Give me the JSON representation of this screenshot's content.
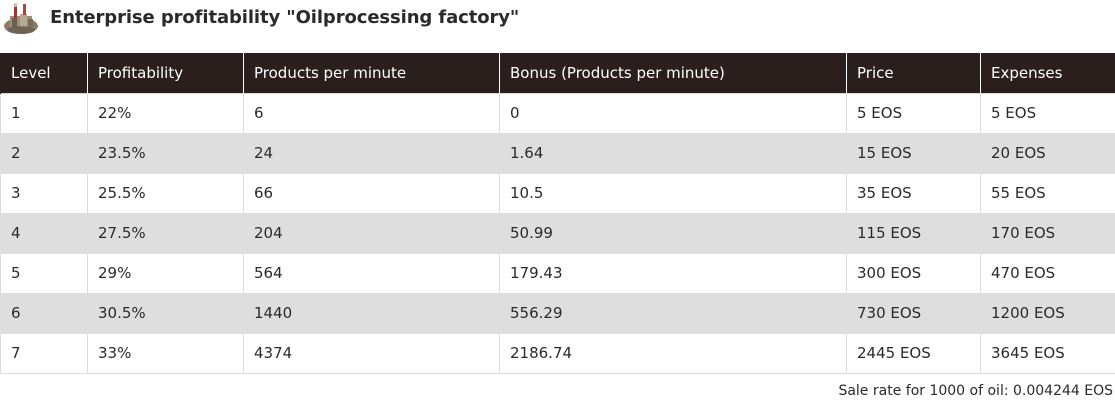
{
  "header": {
    "title": "Enterprise profitability \"Oilprocessing factory\"",
    "icon": "oil-factory-icon"
  },
  "table": {
    "columns": [
      "Level",
      "Profitability",
      "Products per minute",
      "Bonus (Products per minute)",
      "Price",
      "Expenses"
    ],
    "rows": [
      [
        "1",
        "22%",
        "6",
        "0",
        "5 EOS",
        "5 EOS"
      ],
      [
        "2",
        "23.5%",
        "24",
        "1.64",
        "15 EOS",
        "20 EOS"
      ],
      [
        "3",
        "25.5%",
        "66",
        "10.5",
        "35 EOS",
        "55 EOS"
      ],
      [
        "4",
        "27.5%",
        "204",
        "50.99",
        "115 EOS",
        "170 EOS"
      ],
      [
        "5",
        "29%",
        "564",
        "179.43",
        "300 EOS",
        "470 EOS"
      ],
      [
        "6",
        "30.5%",
        "1440",
        "556.29",
        "730 EOS",
        "1200 EOS"
      ],
      [
        "7",
        "33%",
        "4374",
        "2186.74",
        "2445 EOS",
        "3645 EOS"
      ]
    ]
  },
  "footer": {
    "sale_rate": "Sale rate for 1000 of oil: 0.004244 EOS"
  },
  "colors": {
    "header_bg": "#2b1f1d",
    "stripe_bg": "#dedede"
  }
}
